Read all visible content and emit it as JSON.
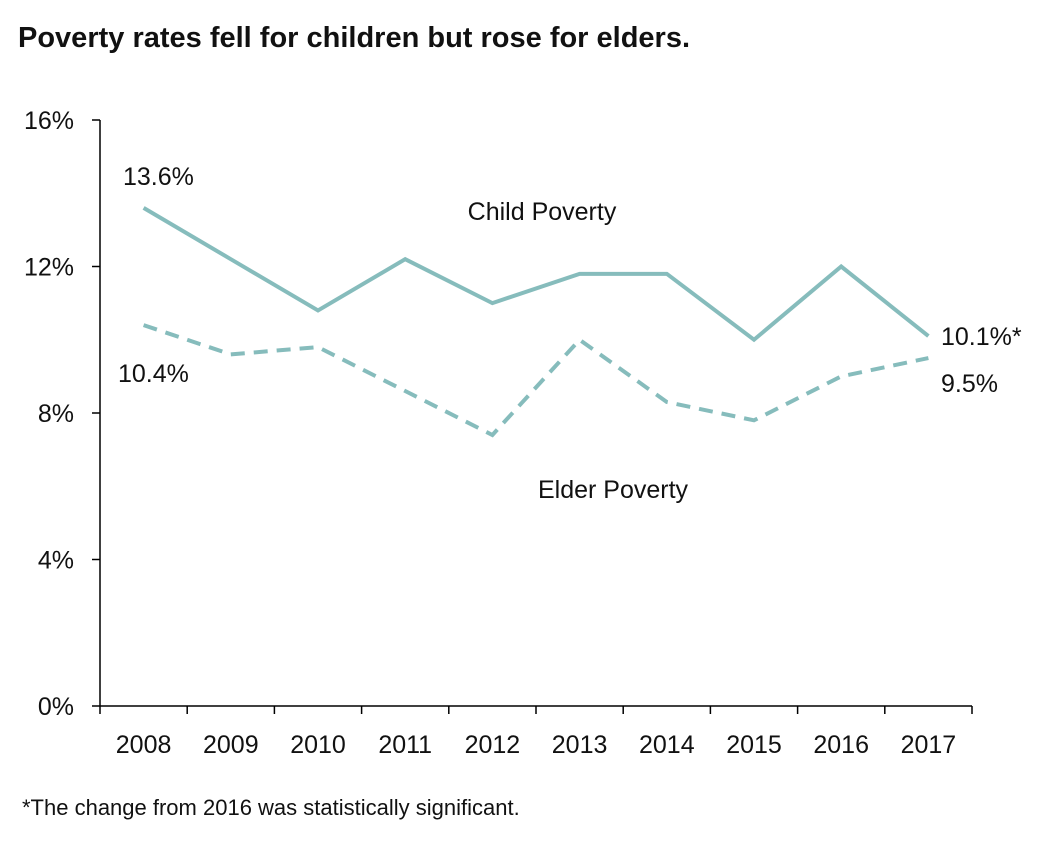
{
  "chart_data": {
    "type": "line",
    "title": "Poverty rates fell for children but rose for elders.",
    "x": [
      "2008",
      "2009",
      "2010",
      "2011",
      "2012",
      "2013",
      "2014",
      "2015",
      "2016",
      "2017"
    ],
    "ylim": [
      0,
      16
    ],
    "yticks": [
      "0%",
      "4%",
      "8%",
      "12%",
      "16%"
    ],
    "grid": false,
    "series": [
      {
        "name": "Child Poverty",
        "values": [
          13.6,
          12.2,
          10.8,
          12.2,
          11.0,
          11.8,
          11.8,
          10.0,
          12.0,
          10.1
        ],
        "style": "solid",
        "color": "#86bcbc"
      },
      {
        "name": "Elder  Poverty",
        "values": [
          10.4,
          9.6,
          9.8,
          8.6,
          7.4,
          10.0,
          8.3,
          7.8,
          9.0,
          9.5
        ],
        "style": "dashed",
        "color": "#86bcbc"
      }
    ],
    "annotations": [
      "13.6%",
      "10.4%",
      "10.1%*",
      "9.5%"
    ],
    "footnote": "*The change from 2016 was statistically significant."
  }
}
